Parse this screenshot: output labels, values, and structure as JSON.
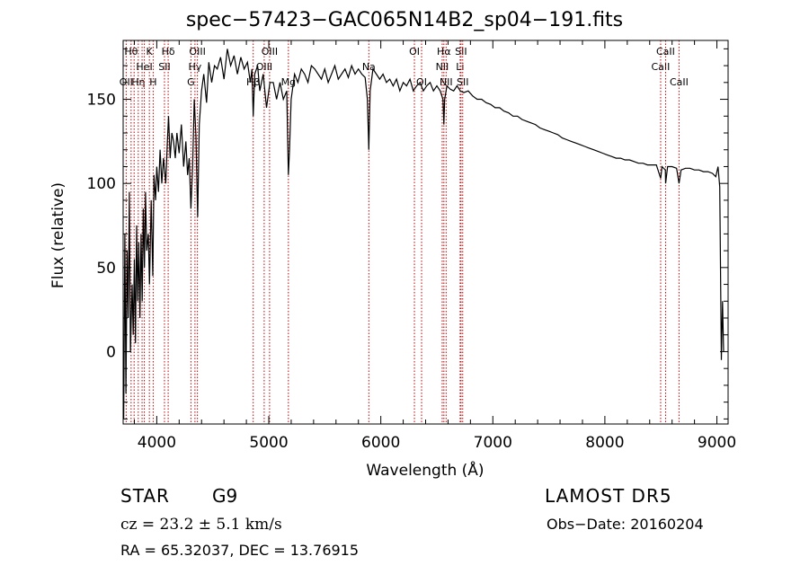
{
  "chart_data": {
    "type": "line",
    "title": "spec−57423−GAC065N14B2_sp04−191.fits",
    "xlabel": "Wavelength (Å)",
    "ylabel": "Flux (relative)",
    "xlim": [
      3700,
      9100
    ],
    "ylim": [
      -43,
      185
    ],
    "xticks": [
      4000,
      5000,
      6000,
      7000,
      8000,
      9000
    ],
    "yticks": [
      0,
      50,
      100,
      150
    ],
    "grid": false,
    "series": [
      {
        "color": "#000000",
        "points": [
          [
            3705,
            -40
          ],
          [
            3715,
            70
          ],
          [
            3725,
            -25
          ],
          [
            3735,
            60
          ],
          [
            3745,
            20
          ],
          [
            3755,
            95
          ],
          [
            3765,
            0
          ],
          [
            3780,
            40
          ],
          [
            3790,
            10
          ],
          [
            3800,
            55
          ],
          [
            3810,
            5
          ],
          [
            3820,
            75
          ],
          [
            3830,
            30
          ],
          [
            3840,
            65
          ],
          [
            3850,
            20
          ],
          [
            3860,
            70
          ],
          [
            3870,
            30
          ],
          [
            3880,
            85
          ],
          [
            3890,
            50
          ],
          [
            3900,
            95
          ],
          [
            3910,
            60
          ],
          [
            3925,
            70
          ],
          [
            3935,
            40
          ],
          [
            3950,
            90
          ],
          [
            3965,
            45
          ],
          [
            3975,
            105
          ],
          [
            3990,
            90
          ],
          [
            4000,
            110
          ],
          [
            4015,
            95
          ],
          [
            4030,
            120
          ],
          [
            4045,
            100
          ],
          [
            4060,
            115
          ],
          [
            4080,
            100
          ],
          [
            4095,
            125
          ],
          [
            4105,
            140
          ],
          [
            4120,
            115
          ],
          [
            4135,
            130
          ],
          [
            4150,
            125
          ],
          [
            4165,
            115
          ],
          [
            4180,
            130
          ],
          [
            4200,
            118
          ],
          [
            4220,
            135
          ],
          [
            4240,
            110
          ],
          [
            4260,
            125
          ],
          [
            4275,
            105
          ],
          [
            4290,
            115
          ],
          [
            4305,
            85
          ],
          [
            4320,
            110
          ],
          [
            4335,
            150
          ],
          [
            4350,
            128
          ],
          [
            4365,
            80
          ],
          [
            4380,
            135
          ],
          [
            4400,
            155
          ],
          [
            4420,
            165
          ],
          [
            4445,
            148
          ],
          [
            4465,
            172
          ],
          [
            4490,
            160
          ],
          [
            4515,
            170
          ],
          [
            4540,
            168
          ],
          [
            4570,
            175
          ],
          [
            4600,
            162
          ],
          [
            4630,
            180
          ],
          [
            4660,
            170
          ],
          [
            4690,
            176
          ],
          [
            4720,
            165
          ],
          [
            4750,
            175
          ],
          [
            4780,
            168
          ],
          [
            4810,
            172
          ],
          [
            4835,
            160
          ],
          [
            4850,
            168
          ],
          [
            4861,
            140
          ],
          [
            4875,
            165
          ],
          [
            4900,
            170
          ],
          [
            4920,
            155
          ],
          [
            4950,
            165
          ],
          [
            4980,
            145
          ],
          [
            5010,
            160
          ],
          [
            5040,
            160
          ],
          [
            5070,
            150
          ],
          [
            5100,
            160
          ],
          [
            5130,
            150
          ],
          [
            5160,
            155
          ],
          [
            5175,
            105
          ],
          [
            5185,
            120
          ],
          [
            5200,
            150
          ],
          [
            5230,
            165
          ],
          [
            5260,
            160
          ],
          [
            5290,
            168
          ],
          [
            5320,
            165
          ],
          [
            5350,
            160
          ],
          [
            5380,
            170
          ],
          [
            5410,
            168
          ],
          [
            5440,
            165
          ],
          [
            5470,
            162
          ],
          [
            5500,
            168
          ],
          [
            5530,
            160
          ],
          [
            5560,
            165
          ],
          [
            5590,
            170
          ],
          [
            5620,
            162
          ],
          [
            5650,
            165
          ],
          [
            5680,
            168
          ],
          [
            5710,
            163
          ],
          [
            5740,
            170
          ],
          [
            5770,
            165
          ],
          [
            5800,
            168
          ],
          [
            5830,
            165
          ],
          [
            5860,
            163
          ],
          [
            5880,
            150
          ],
          [
            5893,
            120
          ],
          [
            5905,
            155
          ],
          [
            5930,
            168
          ],
          [
            5960,
            165
          ],
          [
            5990,
            162
          ],
          [
            6020,
            165
          ],
          [
            6050,
            160
          ],
          [
            6080,
            162
          ],
          [
            6110,
            158
          ],
          [
            6140,
            162
          ],
          [
            6170,
            155
          ],
          [
            6200,
            160
          ],
          [
            6230,
            158
          ],
          [
            6260,
            162
          ],
          [
            6290,
            155
          ],
          [
            6320,
            158
          ],
          [
            6350,
            160
          ],
          [
            6380,
            155
          ],
          [
            6410,
            158
          ],
          [
            6440,
            160
          ],
          [
            6470,
            155
          ],
          [
            6500,
            158
          ],
          [
            6530,
            155
          ],
          [
            6555,
            150
          ],
          [
            6563,
            135
          ],
          [
            6570,
            150
          ],
          [
            6590,
            158
          ],
          [
            6620,
            156
          ],
          [
            6650,
            155
          ],
          [
            6680,
            158
          ],
          [
            6710,
            155
          ],
          [
            6740,
            154
          ],
          [
            6780,
            155
          ],
          [
            6820,
            152
          ],
          [
            6860,
            150
          ],
          [
            6900,
            150
          ],
          [
            6940,
            148
          ],
          [
            6980,
            147
          ],
          [
            7020,
            145
          ],
          [
            7060,
            145
          ],
          [
            7100,
            143
          ],
          [
            7140,
            142
          ],
          [
            7180,
            140
          ],
          [
            7220,
            140
          ],
          [
            7260,
            138
          ],
          [
            7300,
            137
          ],
          [
            7340,
            136
          ],
          [
            7380,
            135
          ],
          [
            7420,
            133
          ],
          [
            7460,
            132
          ],
          [
            7500,
            131
          ],
          [
            7540,
            130
          ],
          [
            7580,
            129
          ],
          [
            7620,
            127
          ],
          [
            7660,
            126
          ],
          [
            7700,
            125
          ],
          [
            7740,
            124
          ],
          [
            7780,
            123
          ],
          [
            7820,
            122
          ],
          [
            7860,
            121
          ],
          [
            7900,
            120
          ],
          [
            7940,
            119
          ],
          [
            7980,
            118
          ],
          [
            8020,
            117
          ],
          [
            8060,
            116
          ],
          [
            8100,
            115
          ],
          [
            8140,
            115
          ],
          [
            8180,
            114
          ],
          [
            8220,
            114
          ],
          [
            8260,
            113
          ],
          [
            8300,
            112
          ],
          [
            8340,
            112
          ],
          [
            8380,
            111
          ],
          [
            8420,
            111
          ],
          [
            8460,
            111
          ],
          [
            8498,
            103
          ],
          [
            8510,
            110
          ],
          [
            8540,
            108
          ],
          [
            8542,
            100
          ],
          [
            8560,
            110
          ],
          [
            8600,
            110
          ],
          [
            8640,
            109
          ],
          [
            8662,
            100
          ],
          [
            8680,
            108
          ],
          [
            8720,
            109
          ],
          [
            8760,
            109
          ],
          [
            8800,
            108
          ],
          [
            8840,
            108
          ],
          [
            8880,
            107
          ],
          [
            8920,
            107
          ],
          [
            8960,
            106
          ],
          [
            8990,
            104
          ],
          [
            9010,
            110
          ],
          [
            9025,
            98
          ],
          [
            9040,
            -5
          ],
          [
            9050,
            30
          ],
          [
            9060,
            0
          ]
        ]
      }
    ],
    "lines": [
      {
        "wavelength": 3727,
        "label": "OII",
        "row": 2
      },
      {
        "wavelength": 3771,
        "label": "Hθ",
        "row": 0
      },
      {
        "wavelength": 3798,
        "label": "",
        "row": 0
      },
      {
        "wavelength": 3835,
        "label": "Hη",
        "row": 2
      },
      {
        "wavelength": 3869,
        "label": "",
        "row": 0
      },
      {
        "wavelength": 3889,
        "label": "HeI",
        "row": 1
      },
      {
        "wavelength": 3934,
        "label": "K",
        "row": 0
      },
      {
        "wavelength": 3968,
        "label": "H",
        "row": 2
      },
      {
        "wavelength": 4069,
        "label": "SII",
        "row": 1
      },
      {
        "wavelength": 4102,
        "label": "Hδ",
        "row": 0
      },
      {
        "wavelength": 4305,
        "label": "G",
        "row": 2
      },
      {
        "wavelength": 4341,
        "label": "Hγ",
        "row": 1
      },
      {
        "wavelength": 4363,
        "label": "OIII",
        "row": 0
      },
      {
        "wavelength": 4861,
        "label": "Hβ",
        "row": 2
      },
      {
        "wavelength": 4959,
        "label": "OIII",
        "row": 1
      },
      {
        "wavelength": 5007,
        "label": "OIII",
        "row": 0
      },
      {
        "wavelength": 5175,
        "label": "Mg",
        "row": 2
      },
      {
        "wavelength": 5893,
        "label": "Na",
        "row": 1
      },
      {
        "wavelength": 6300,
        "label": "OI",
        "row": 0
      },
      {
        "wavelength": 6364,
        "label": "OI",
        "row": 2
      },
      {
        "wavelength": 6548,
        "label": "NII",
        "row": 1
      },
      {
        "wavelength": 6563,
        "label": "Hα",
        "row": 0
      },
      {
        "wavelength": 6583,
        "label": "NII",
        "row": 2
      },
      {
        "wavelength": 6708,
        "label": "Li",
        "row": 1
      },
      {
        "wavelength": 6716,
        "label": "SII",
        "row": 0
      },
      {
        "wavelength": 6731,
        "label": "SII",
        "row": 2
      },
      {
        "wavelength": 8498,
        "label": "CaII",
        "row": 1
      },
      {
        "wavelength": 8542,
        "label": "CaII",
        "row": 0
      },
      {
        "wavelength": 8662,
        "label": "CaII",
        "row": 2
      }
    ]
  },
  "info": {
    "class": "STAR",
    "subclass": "G9",
    "survey": "LAMOST DR5",
    "cz": "cz = 23.2 ± 5.1 km/s",
    "obs_date": "Obs−Date: 20160204",
    "radec": "RA =  65.32037, DEC =  13.76915"
  },
  "colors": {
    "spectrum": "#000000",
    "line_markers": "#c00000",
    "axes": "#000000"
  }
}
